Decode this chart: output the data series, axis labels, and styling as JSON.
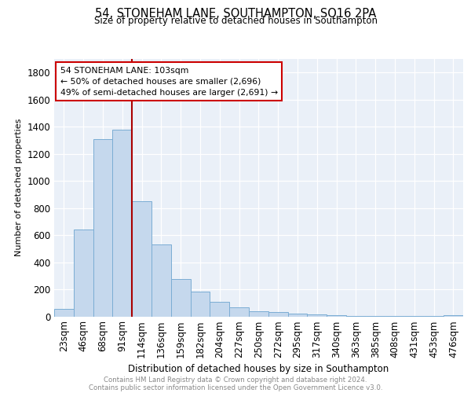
{
  "title": "54, STONEHAM LANE, SOUTHAMPTON, SO16 2PA",
  "subtitle": "Size of property relative to detached houses in Southampton",
  "xlabel": "Distribution of detached houses by size in Southampton",
  "ylabel": "Number of detached properties",
  "categories": [
    "23sqm",
    "46sqm",
    "68sqm",
    "91sqm",
    "114sqm",
    "136sqm",
    "159sqm",
    "182sqm",
    "204sqm",
    "227sqm",
    "250sqm",
    "272sqm",
    "295sqm",
    "317sqm",
    "340sqm",
    "363sqm",
    "385sqm",
    "408sqm",
    "431sqm",
    "453sqm",
    "476sqm"
  ],
  "values": [
    55,
    640,
    1310,
    1380,
    850,
    530,
    275,
    185,
    105,
    65,
    35,
    30,
    20,
    15,
    8,
    5,
    3,
    2,
    2,
    2,
    10
  ],
  "bar_color": "#c5d8ed",
  "bar_edge_color": "#7badd4",
  "background_color": "#eaf0f8",
  "grid_color": "#ffffff",
  "vline_color": "#aa0000",
  "vline_x_index": 4,
  "annotation_title": "54 STONEHAM LANE: 103sqm",
  "annotation_line1": "← 50% of detached houses are smaller (2,696)",
  "annotation_line2": "49% of semi-detached houses are larger (2,691) →",
  "annotation_box_color": "#cc0000",
  "ylim": [
    0,
    1900
  ],
  "yticks": [
    0,
    200,
    400,
    600,
    800,
    1000,
    1200,
    1400,
    1600,
    1800
  ],
  "footer_line1": "Contains HM Land Registry data © Crown copyright and database right 2024.",
  "footer_line2": "Contains public sector information licensed under the Open Government Licence v3.0."
}
